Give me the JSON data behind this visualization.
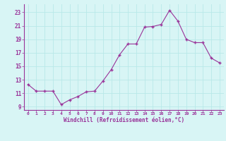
{
  "x": [
    0,
    1,
    2,
    3,
    4,
    5,
    6,
    7,
    8,
    9,
    10,
    11,
    12,
    13,
    14,
    15,
    16,
    17,
    18,
    19,
    20,
    21,
    22,
    23
  ],
  "y": [
    12.3,
    11.3,
    11.3,
    11.3,
    9.3,
    10.0,
    10.5,
    11.2,
    11.3,
    12.8,
    14.5,
    16.7,
    18.3,
    18.3,
    20.8,
    20.9,
    21.2,
    23.3,
    21.7,
    19.0,
    18.5,
    18.5,
    16.2,
    15.5
  ],
  "line_color": "#993399",
  "marker_color": "#993399",
  "bg_color": "#d8f5f5",
  "grid_color": "#b8e8e8",
  "xlabel": "Windchill (Refroidissement éolien,°C)",
  "xlabel_color": "#993399",
  "tick_color": "#993399",
  "axis_color": "#993399",
  "yticks": [
    9,
    11,
    13,
    15,
    17,
    19,
    21,
    23
  ],
  "xtick_labels": [
    "0",
    "1",
    "2",
    "3",
    "4",
    "5",
    "6",
    "7",
    "8",
    "9",
    "10",
    "11",
    "12",
    "13",
    "14",
    "15",
    "16",
    "17",
    "18",
    "19",
    "20",
    "21",
    "22",
    "23"
  ],
  "ylim": [
    8.5,
    24.2
  ],
  "xlim": [
    -0.5,
    23.5
  ],
  "figsize": [
    3.2,
    2.0
  ],
  "dpi": 100
}
